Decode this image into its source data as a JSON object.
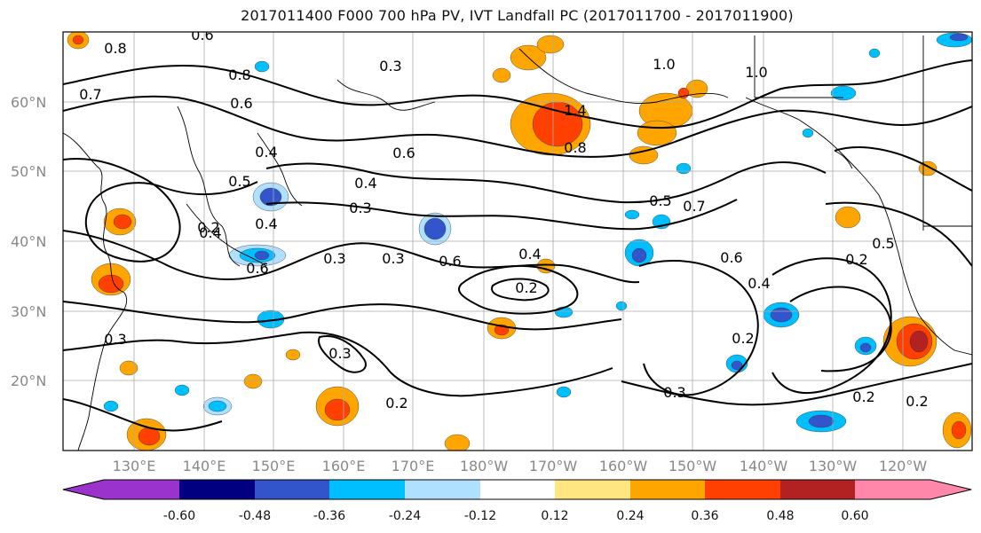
{
  "title": "2017011400 F000 700 hPa PV, IVT Landfall PC (2017011700 - 2017011900)",
  "lat_labels": [
    "60°N",
    "50°N",
    "40°N",
    "30°N",
    "20°N"
  ],
  "lon_labels": [
    "130°E",
    "140°E",
    "150°E",
    "160°E",
    "170°E",
    "180°W",
    "170°W",
    "160°W",
    "150°W",
    "140°W",
    "130°W",
    "120°W"
  ],
  "colorbar": {
    "colors": [
      "#9933cc",
      "#000080",
      "#3355cc",
      "#00bfff",
      "#b0e0ff",
      "#ffffff",
      "#ffe680",
      "#ffa500",
      "#ff4000",
      "#b22222",
      "#ff88aa"
    ],
    "tick_labels": [
      "-0.60",
      "-0.48",
      "-0.36",
      "-0.24",
      "-0.12",
      "0.12",
      "0.24",
      "0.36",
      "0.48",
      "0.60"
    ]
  },
  "contour_labels": [
    "0.8",
    "0.6",
    "0.3",
    "0.8",
    "1.0",
    "1.0",
    "0.7",
    "0.6",
    "0.4",
    "0.6",
    "1.4",
    "0.8",
    "0.4",
    "0.3",
    "0.5",
    "0.4",
    "0.3",
    "0.6",
    "0.3",
    "0.4",
    "0.2",
    "0.4",
    "0.5",
    "0.7",
    "0.6",
    "0.4",
    "0.2",
    "0.5",
    "0.6",
    "0.3",
    "0.2",
    "0.3",
    "0.2",
    "0.3",
    "0.2",
    "0.2",
    "0.2"
  ],
  "fill_colors": {
    "orange": "#ffa500",
    "red": "#ff4000",
    "darkred": "#b22222",
    "yellow": "#ffe680",
    "lightblue": "#b0e0ff",
    "cyan": "#00bfff",
    "blue": "#3355cc",
    "navy": "#000080"
  }
}
